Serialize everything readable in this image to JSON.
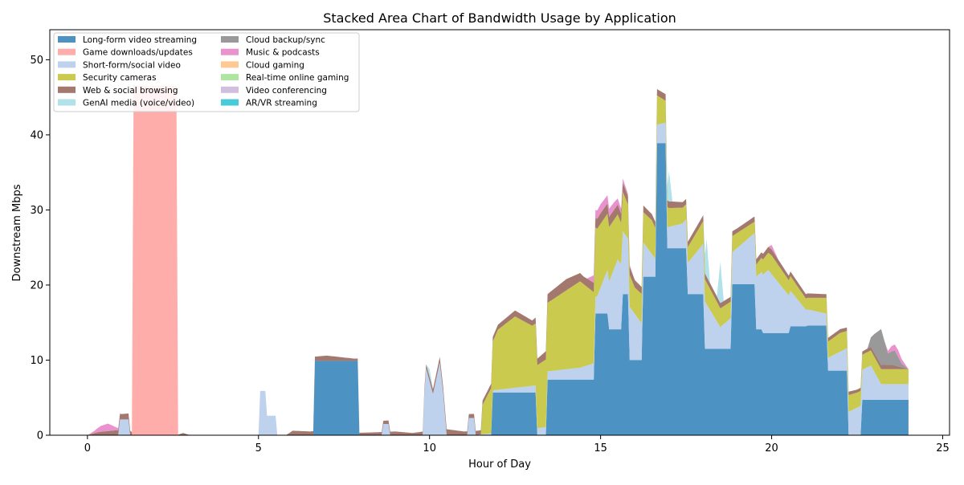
{
  "chart_data": {
    "type": "area",
    "title": "Stacked Area Chart of Bandwidth Usage by Application",
    "xlabel": "Hour of Day",
    "ylabel": "Downstream Mbps",
    "xlim": [
      -1.1,
      25.2
    ],
    "ylim": [
      0,
      54
    ],
    "xticks": [
      0,
      5,
      10,
      15,
      20,
      25
    ],
    "yticks": [
      0,
      10,
      20,
      30,
      40,
      50
    ],
    "grid": false,
    "legend": {
      "placement": "top-left",
      "columns": 2
    },
    "series": [
      {
        "name": "Long-form video streaming",
        "color": "#1f77b4",
        "points": [
          [
            0,
            0
          ],
          [
            6.6,
            0
          ],
          [
            6.6,
            9.9
          ],
          [
            7.9,
            9.9
          ],
          [
            7.9,
            0
          ],
          [
            11.8,
            0
          ],
          [
            11.8,
            5.7
          ],
          [
            13.1,
            5.7
          ],
          [
            13.1,
            0
          ],
          [
            13.4,
            0
          ],
          [
            13.4,
            7.4
          ],
          [
            14.8,
            7.4
          ],
          [
            14.8,
            16.2
          ],
          [
            15.2,
            16.2
          ],
          [
            15.2,
            14.1
          ],
          [
            15.6,
            14.1
          ],
          [
            15.6,
            18.8
          ],
          [
            15.8,
            18.8
          ],
          [
            15.8,
            10.0
          ],
          [
            16.2,
            10.0
          ],
          [
            16.2,
            21.1
          ],
          [
            16.6,
            21.1
          ],
          [
            16.6,
            38.9
          ],
          [
            16.9,
            38.9
          ],
          [
            16.9,
            24.9
          ],
          [
            17.5,
            24.9
          ],
          [
            17.5,
            18.8
          ],
          [
            18.0,
            18.8
          ],
          [
            18.0,
            11.5
          ],
          [
            18.4,
            11.5
          ],
          [
            18.4,
            11.5
          ],
          [
            18.8,
            11.5
          ],
          [
            18.8,
            20.1
          ],
          [
            19.5,
            20.1
          ],
          [
            19.5,
            14.1
          ],
          [
            19.7,
            14.1
          ],
          [
            19.7,
            13.6
          ],
          [
            20.5,
            13.6
          ],
          [
            20.5,
            14.5
          ],
          [
            21.0,
            14.5
          ],
          [
            21.0,
            14.6
          ],
          [
            21.6,
            14.6
          ],
          [
            21.6,
            8.6
          ],
          [
            22.2,
            8.6
          ],
          [
            22.2,
            0
          ],
          [
            22.6,
            0
          ],
          [
            22.6,
            4.7
          ],
          [
            24.0,
            4.7
          ]
        ]
      },
      {
        "name": "Game downloads/updates",
        "color": "#ff9896",
        "points": [
          [
            0,
            0
          ],
          [
            1.3,
            0
          ],
          [
            1.3,
            46.5
          ],
          [
            2.6,
            46.5
          ],
          [
            2.6,
            0
          ],
          [
            24.0,
            0
          ]
        ]
      },
      {
        "name": "Short-form/social video",
        "color": "#aec7e8",
        "points": [
          [
            0,
            0
          ],
          [
            0.9,
            0
          ],
          [
            0.9,
            2.1
          ],
          [
            1.2,
            2.1
          ],
          [
            1.2,
            0
          ],
          [
            5.0,
            0
          ],
          [
            5.0,
            5.9
          ],
          [
            5.2,
            5.9
          ],
          [
            5.2,
            2.6
          ],
          [
            5.5,
            2.6
          ],
          [
            5.5,
            0
          ],
          [
            8.6,
            0
          ],
          [
            8.6,
            1.5
          ],
          [
            8.8,
            1.5
          ],
          [
            8.8,
            0
          ],
          [
            9.8,
            0
          ],
          [
            9.8,
            2.6
          ],
          [
            9.9,
            8.9
          ],
          [
            10.1,
            5.5
          ],
          [
            10.3,
            9.7
          ],
          [
            10.4,
            5.6
          ],
          [
            10.5,
            0
          ],
          [
            11.1,
            0
          ],
          [
            11.1,
            2.3
          ],
          [
            11.3,
            2.3
          ],
          [
            11.3,
            0
          ],
          [
            14.4,
            1.6
          ],
          [
            14.9,
            2.3
          ],
          [
            15.5,
            9.3
          ],
          [
            16.6,
            2.4
          ],
          [
            17.4,
            3.3
          ],
          [
            18.0,
            6.7
          ],
          [
            18.5,
            2.9
          ],
          [
            19.9,
            8.4
          ],
          [
            20.4,
            5.6
          ],
          [
            21.0,
            2.2
          ],
          [
            21.6,
            1.6
          ],
          [
            22.9,
            4.6
          ],
          [
            23.2,
            2.1
          ]
        ]
      },
      {
        "name": "Security cameras",
        "color": "#bcbd22",
        "points": [
          [
            0,
            0
          ],
          [
            11.5,
            0
          ],
          [
            11.5,
            3.5
          ],
          [
            11.8,
            6.0
          ],
          [
            12.0,
            8.0
          ],
          [
            12.5,
            9.5
          ],
          [
            13.0,
            8.0
          ],
          [
            13.4,
            9.0
          ],
          [
            13.8,
            10.0
          ],
          [
            14.4,
            11.5
          ],
          [
            15.0,
            8.5
          ],
          [
            15.5,
            6.0
          ],
          [
            16.0,
            3.5
          ],
          [
            16.5,
            4.5
          ],
          [
            17.0,
            2.5
          ],
          [
            17.5,
            2.0
          ],
          [
            18.0,
            3.0
          ],
          [
            18.5,
            2.5
          ],
          [
            19.0,
            2.0
          ],
          [
            19.5,
            1.5
          ],
          [
            20.0,
            2.5
          ],
          [
            20.5,
            2.0
          ],
          [
            21.0,
            1.5
          ],
          [
            21.5,
            2.0
          ],
          [
            22.0,
            2.5
          ],
          [
            22.5,
            2.0
          ],
          [
            23.0,
            2.0
          ],
          [
            24.0,
            2.0
          ]
        ]
      },
      {
        "name": "Web & social browsing",
        "color": "#8c564b",
        "points": [
          [
            0,
            0
          ],
          [
            0.3,
            0.4
          ],
          [
            0.7,
            0.6
          ],
          [
            1.2,
            0.8
          ],
          [
            1.4,
            0
          ],
          [
            2.6,
            0
          ],
          [
            2.8,
            0.3
          ],
          [
            3.0,
            0
          ],
          [
            5.8,
            0
          ],
          [
            6.0,
            0.6
          ],
          [
            6.5,
            0.5
          ],
          [
            7.0,
            0.7
          ],
          [
            7.8,
            0.3
          ],
          [
            8.5,
            0.4
          ],
          [
            9.0,
            0.5
          ],
          [
            9.5,
            0.3
          ],
          [
            10.0,
            0.6
          ],
          [
            10.5,
            0.8
          ],
          [
            11.0,
            0.5
          ],
          [
            11.8,
            0.6
          ],
          [
            12.5,
            0.8
          ],
          [
            13.0,
            0.7
          ],
          [
            13.5,
            1.2
          ],
          [
            14.0,
            1.5
          ],
          [
            14.5,
            1.0
          ],
          [
            15.0,
            1.4
          ],
          [
            15.5,
            1.3
          ],
          [
            16.0,
            1.0
          ],
          [
            16.5,
            0.8
          ],
          [
            17.0,
            0.9
          ],
          [
            17.5,
            0.7
          ],
          [
            18.0,
            0.8
          ],
          [
            18.5,
            0.7
          ],
          [
            19.0,
            0.6
          ],
          [
            19.5,
            0.7
          ],
          [
            20.0,
            0.8
          ],
          [
            20.5,
            0.6
          ],
          [
            21.0,
            0.6
          ],
          [
            21.5,
            0.5
          ],
          [
            22.0,
            0.5
          ],
          [
            22.5,
            0.4
          ],
          [
            23.0,
            0.5
          ],
          [
            23.5,
            0.6
          ],
          [
            24.0,
            0
          ]
        ]
      },
      {
        "name": "GenAI media (voice/video)",
        "color": "#9edae5",
        "points": [
          [
            0,
            0
          ],
          [
            9.9,
            0
          ],
          [
            10.0,
            1.0
          ],
          [
            10.1,
            0
          ],
          [
            16.9,
            0
          ],
          [
            17.0,
            4.0
          ],
          [
            17.1,
            0
          ],
          [
            18.0,
            0
          ],
          [
            18.1,
            5.0
          ],
          [
            18.2,
            0
          ],
          [
            18.4,
            0
          ],
          [
            18.5,
            5.5
          ],
          [
            18.6,
            0
          ],
          [
            24.0,
            0
          ]
        ]
      },
      {
        "name": "Cloud backup/sync",
        "color": "#7f7f7f",
        "points": [
          [
            0,
            0
          ],
          [
            22.8,
            0
          ],
          [
            23.0,
            2.5
          ],
          [
            23.2,
            4.8
          ],
          [
            23.4,
            1.5
          ],
          [
            23.6,
            2.0
          ],
          [
            23.8,
            0.5
          ],
          [
            24.0,
            0
          ]
        ]
      },
      {
        "name": "Music & podcasts",
        "color": "#e377c2",
        "points": [
          [
            0,
            0
          ],
          [
            0.2,
            0.3
          ],
          [
            0.4,
            0.8
          ],
          [
            0.6,
            1.0
          ],
          [
            0.8,
            0.5
          ],
          [
            1.0,
            0
          ],
          [
            14.6,
            0
          ],
          [
            14.8,
            1.0
          ],
          [
            15.0,
            1.2
          ],
          [
            15.4,
            1.0
          ],
          [
            15.8,
            0.3
          ],
          [
            16.0,
            0
          ],
          [
            19.9,
            0
          ],
          [
            20.0,
            0.6
          ],
          [
            20.2,
            0
          ],
          [
            23.3,
            0
          ],
          [
            23.5,
            0.7
          ],
          [
            23.7,
            0.9
          ],
          [
            24.0,
            0
          ]
        ]
      },
      {
        "name": "Cloud gaming",
        "color": "#ffbb78",
        "points": [
          [
            0,
            0
          ],
          [
            24.0,
            0
          ]
        ]
      },
      {
        "name": "Real-time online gaming",
        "color": "#98df8a",
        "points": [
          [
            0,
            0
          ],
          [
            24.0,
            0
          ]
        ]
      },
      {
        "name": "Video conferencing",
        "color": "#c5b0d5",
        "points": [
          [
            0,
            0
          ],
          [
            24.0,
            0
          ]
        ]
      },
      {
        "name": "AR/VR streaming",
        "color": "#17becf",
        "points": [
          [
            0,
            0
          ],
          [
            24.0,
            0
          ]
        ]
      }
    ]
  }
}
